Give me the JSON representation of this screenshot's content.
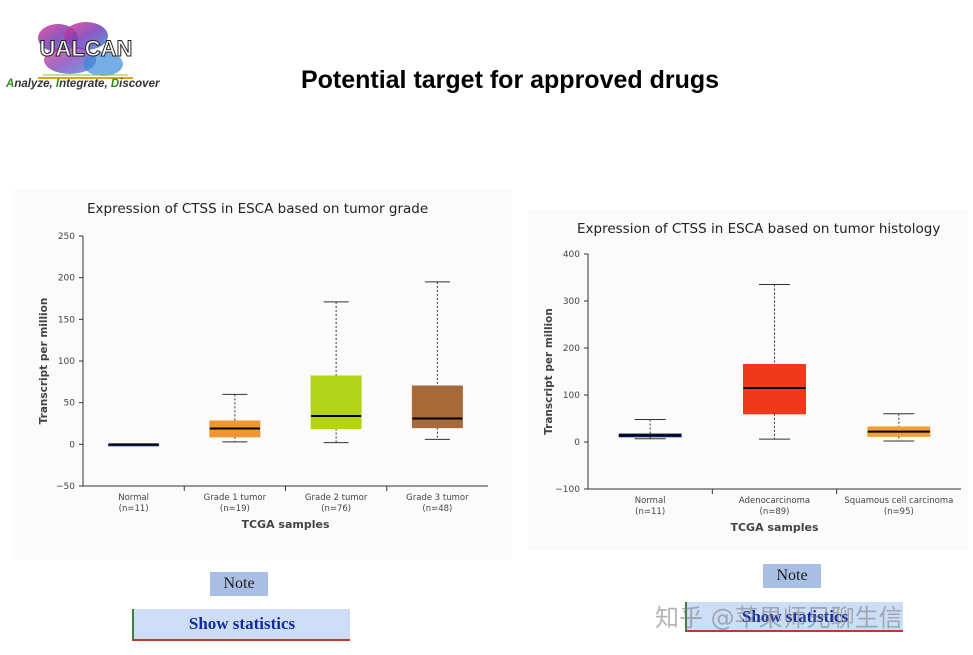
{
  "header": {
    "logo_text": "UALCAN",
    "tagline_parts": [
      "A",
      "nalyze, ",
      "I",
      "ntegrate, ",
      "D",
      "iscover"
    ],
    "title": "Potential target for approved drugs"
  },
  "chart_data": [
    {
      "type": "boxplot",
      "title": "Expression of CTSS in ESCA based on tumor grade",
      "xlabel": "TCGA samples",
      "ylabel": "Transcript per million",
      "ylim": [
        -50,
        250
      ],
      "yticks": [
        -50,
        0,
        50,
        100,
        150,
        200,
        250
      ],
      "categories": [
        "Normal",
        "Grade 1 tumor",
        "Grade 2 tumor",
        "Grade 3 tumor"
      ],
      "counts": [
        "(n=11)",
        "(n=19)",
        "(n=76)",
        "(n=48)"
      ],
      "colors": [
        "#1a2a8a",
        "#f0962e",
        "#b4d41a",
        "#a86a38"
      ],
      "boxes": [
        {
          "min": 0,
          "q1": 0,
          "median": 0,
          "q3": 0,
          "max": 0
        },
        {
          "min": 3,
          "q1": 9,
          "median": 19,
          "q3": 28,
          "max": 60
        },
        {
          "min": 2,
          "q1": 19,
          "median": 34,
          "q3": 82,
          "max": 171
        },
        {
          "min": 6,
          "q1": 20,
          "median": 31,
          "q3": 70,
          "max": 195
        }
      ]
    },
    {
      "type": "boxplot",
      "title": "Expression of CTSS in ESCA based on tumor histology",
      "xlabel": "TCGA samples",
      "ylabel": "Transcript per million",
      "ylim": [
        -100,
        400
      ],
      "yticks": [
        -100,
        0,
        100,
        200,
        300,
        400
      ],
      "categories": [
        "Normal",
        "Adenocarcinoma",
        "Squamous cell carcinoma"
      ],
      "counts": [
        "(n=11)",
        "(n=89)",
        "(n=95)"
      ],
      "colors": [
        "#1a2a8a",
        "#ee3a1a",
        "#f0a030"
      ],
      "boxes": [
        {
          "min": 7,
          "q1": 11,
          "median": 14,
          "q3": 17,
          "max": 48
        },
        {
          "min": 6,
          "q1": 60,
          "median": 115,
          "q3": 165,
          "max": 335
        },
        {
          "min": 2,
          "q1": 12,
          "median": 22,
          "q3": 32,
          "max": 60
        }
      ]
    }
  ],
  "buttons": {
    "note": "Note",
    "show_statistics": "Show statistics"
  },
  "watermark": "知乎 @苹果师兄聊生信"
}
